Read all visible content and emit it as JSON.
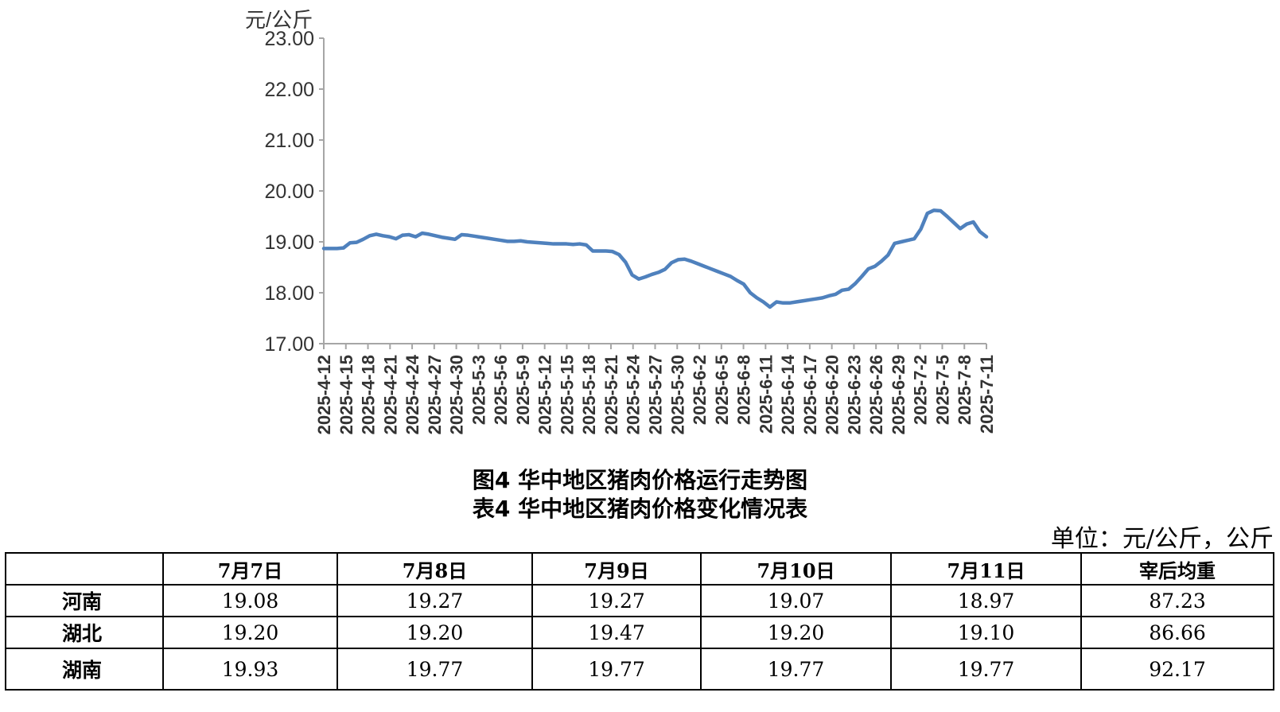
{
  "chart_data": {
    "type": "line",
    "ylabel": "元/公斤",
    "ylim": [
      17.0,
      23.0
    ],
    "yticks": [
      "17.00",
      "18.00",
      "19.00",
      "20.00",
      "21.00",
      "22.00",
      "23.00"
    ],
    "xtick_labels": [
      "2025-4-12",
      "2025-4-15",
      "2025-4-18",
      "2025-4-21",
      "2025-4-24",
      "2025-4-27",
      "2025-4-30",
      "2025-5-3",
      "2025-5-6",
      "2025-5-9",
      "2025-5-12",
      "2025-5-15",
      "2025-5-18",
      "2025-5-21",
      "2025-5-24",
      "2025-5-27",
      "2025-5-30",
      "2025-6-2",
      "2025-6-5",
      "2025-6-8",
      "2025-6-11",
      "2025-6-14",
      "2025-6-17",
      "2025-6-20",
      "2025-6-23",
      "2025-6-26",
      "2025-6-29",
      "2025-7-2",
      "2025-7-5",
      "2025-7-8",
      "2025-7-11"
    ],
    "color": "#4f81bd",
    "grid": false,
    "series": [
      {
        "values": [
          18.87,
          18.87,
          18.87,
          18.88,
          18.98,
          18.99,
          19.05,
          19.12,
          19.15,
          19.12,
          19.1,
          19.06,
          19.13,
          19.14,
          19.1,
          19.17,
          19.15,
          19.12,
          19.09,
          19.07,
          19.05,
          19.14,
          19.13,
          19.11,
          19.09,
          19.07,
          19.05,
          19.03,
          19.01,
          19.01,
          19.02,
          19.0,
          18.99,
          18.98,
          18.97,
          18.96,
          18.96,
          18.96,
          18.95,
          18.96,
          18.94,
          18.82,
          18.82,
          18.82,
          18.81,
          18.75,
          18.6,
          18.35,
          18.27,
          18.31,
          18.36,
          18.4,
          18.46,
          18.59,
          18.65,
          18.66,
          18.62,
          18.57,
          18.52,
          18.47,
          18.42,
          18.37,
          18.32,
          18.24,
          18.17,
          18.0,
          17.9,
          17.82,
          17.72,
          17.82,
          17.8,
          17.8,
          17.82,
          17.84,
          17.86,
          17.88,
          17.9,
          17.94,
          17.97,
          18.05,
          18.07,
          18.18,
          18.32,
          18.47,
          18.52,
          18.62,
          18.74,
          18.97,
          19.0,
          19.03,
          19.06,
          19.25,
          19.56,
          19.62,
          19.61,
          19.5,
          19.38,
          19.26,
          19.35,
          19.39,
          19.2,
          19.1
        ]
      }
    ]
  },
  "captions": {
    "figure": "图4  华中地区猪肉价格运行走势图",
    "table": "表4  华中地区猪肉价格变化情况表"
  },
  "table": {
    "unit_note": "单位：元/公斤，公斤",
    "headers": [
      "",
      "7月7日",
      "7月8日",
      "7月9日",
      "7月10日",
      "7月11日",
      "宰后均重"
    ],
    "rows": [
      {
        "region": "河南",
        "values": [
          "19.08",
          "19.27",
          "19.27",
          "19.07",
          "18.97",
          "87.23"
        ]
      },
      {
        "region": "湖北",
        "values": [
          "19.20",
          "19.20",
          "19.47",
          "19.20",
          "19.10",
          "86.66"
        ]
      },
      {
        "region": "湖南",
        "values": [
          "19.93",
          "19.77",
          "19.77",
          "19.77",
          "19.77",
          "92.17"
        ]
      }
    ]
  }
}
